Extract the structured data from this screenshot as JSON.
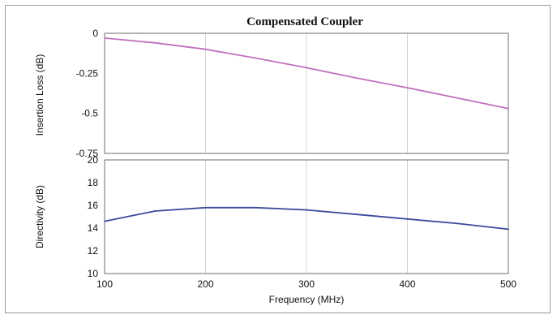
{
  "chart_data": [
    {
      "type": "line",
      "title": "Compensated Coupler",
      "ylabel": "Insertion Loss (dB)",
      "xlim": [
        100,
        500
      ],
      "ylim": [
        -0.75,
        0
      ],
      "yticks": [
        "0",
        "-0.25",
        "-0.5",
        "-0.75"
      ],
      "ytick_values": [
        0,
        -0.25,
        -0.5,
        -0.75
      ],
      "grid": "vertical",
      "series": [
        {
          "color": "#c070c0",
          "x": [
            100,
            150,
            200,
            250,
            300,
            350,
            400,
            450,
            500
          ],
          "y": [
            -0.03,
            -0.06,
            -0.1,
            -0.155,
            -0.215,
            -0.28,
            -0.34,
            -0.405,
            -0.47
          ]
        }
      ]
    },
    {
      "type": "line",
      "title": "",
      "xlabel": "Frequency (MHz)",
      "ylabel": "Directivity (dB)",
      "xlim": [
        100,
        500
      ],
      "ylim": [
        10,
        20
      ],
      "xticks": [
        "100",
        "200",
        "300",
        "400",
        "500"
      ],
      "xtick_values": [
        100,
        200,
        300,
        400,
        500
      ],
      "yticks": [
        "20",
        "18",
        "16",
        "14",
        "12",
        "10"
      ],
      "ytick_values": [
        20,
        18,
        16,
        14,
        12,
        10
      ],
      "grid": "vertical",
      "series": [
        {
          "color": "#3a4a9c",
          "x": [
            100,
            150,
            200,
            250,
            300,
            350,
            400,
            450,
            500
          ],
          "y": [
            14.6,
            15.5,
            15.8,
            15.8,
            15.6,
            15.2,
            14.8,
            14.4,
            13.9
          ]
        }
      ]
    }
  ]
}
